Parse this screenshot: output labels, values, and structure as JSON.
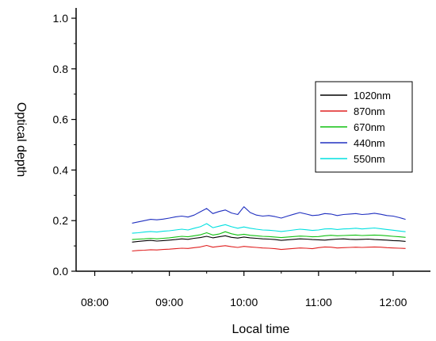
{
  "chart_data": {
    "type": "line",
    "xlabel": "Local time",
    "ylabel": "Optical depth",
    "xlim": [
      "07:45",
      "12:30"
    ],
    "ylim": [
      0.0,
      1.0
    ],
    "x_ticks": [
      "08:00",
      "09:00",
      "10:00",
      "11:00",
      "12:00"
    ],
    "y_ticks": [
      "0.0",
      "0.2",
      "0.4",
      "0.6",
      "0.8",
      "1.0"
    ],
    "x": [
      "08:30",
      "08:35",
      "08:40",
      "08:45",
      "08:50",
      "08:55",
      "09:00",
      "09:05",
      "09:10",
      "09:15",
      "09:20",
      "09:25",
      "09:30",
      "09:35",
      "09:40",
      "09:45",
      "09:50",
      "09:55",
      "10:00",
      "10:05",
      "10:10",
      "10:15",
      "10:20",
      "10:25",
      "10:30",
      "10:35",
      "10:40",
      "10:45",
      "10:50",
      "10:55",
      "11:00",
      "11:05",
      "11:10",
      "11:15",
      "11:20",
      "11:25",
      "11:30",
      "11:35",
      "11:40",
      "11:45",
      "11:50",
      "11:55",
      "12:00",
      "12:05",
      "12:10"
    ],
    "grid": false,
    "legend_position": "right",
    "series": [
      {
        "name": "1020nm",
        "color": "#000000",
        "values": [
          0.115,
          0.118,
          0.12,
          0.122,
          0.119,
          0.121,
          0.123,
          0.125,
          0.128,
          0.126,
          0.13,
          0.133,
          0.138,
          0.132,
          0.136,
          0.14,
          0.134,
          0.131,
          0.135,
          0.132,
          0.13,
          0.128,
          0.127,
          0.125,
          0.122,
          0.124,
          0.126,
          0.128,
          0.127,
          0.125,
          0.124,
          0.123,
          0.125,
          0.127,
          0.128,
          0.126,
          0.125,
          0.126,
          0.127,
          0.125,
          0.124,
          0.123,
          0.121,
          0.12,
          0.118
        ]
      },
      {
        "name": "870nm",
        "color": "#e02020",
        "values": [
          0.08,
          0.082,
          0.083,
          0.085,
          0.084,
          0.086,
          0.087,
          0.089,
          0.091,
          0.09,
          0.093,
          0.096,
          0.102,
          0.095,
          0.098,
          0.101,
          0.097,
          0.094,
          0.098,
          0.096,
          0.094,
          0.092,
          0.091,
          0.089,
          0.086,
          0.088,
          0.09,
          0.092,
          0.091,
          0.089,
          0.093,
          0.096,
          0.095,
          0.092,
          0.093,
          0.094,
          0.095,
          0.094,
          0.095,
          0.096,
          0.095,
          0.093,
          0.092,
          0.091,
          0.09
        ]
      },
      {
        "name": "670nm",
        "color": "#10c010",
        "values": [
          0.125,
          0.127,
          0.128,
          0.13,
          0.128,
          0.13,
          0.132,
          0.135,
          0.138,
          0.136,
          0.14,
          0.144,
          0.152,
          0.143,
          0.147,
          0.156,
          0.148,
          0.143,
          0.146,
          0.142,
          0.14,
          0.138,
          0.137,
          0.135,
          0.133,
          0.135,
          0.137,
          0.139,
          0.138,
          0.136,
          0.137,
          0.14,
          0.142,
          0.14,
          0.141,
          0.142,
          0.143,
          0.141,
          0.142,
          0.143,
          0.142,
          0.14,
          0.138,
          0.136,
          0.134
        ]
      },
      {
        "name": "440nm",
        "color": "#2030c0",
        "values": [
          0.19,
          0.195,
          0.2,
          0.205,
          0.203,
          0.206,
          0.21,
          0.215,
          0.218,
          0.214,
          0.222,
          0.235,
          0.248,
          0.228,
          0.236,
          0.242,
          0.23,
          0.224,
          0.255,
          0.232,
          0.222,
          0.218,
          0.22,
          0.216,
          0.21,
          0.218,
          0.225,
          0.232,
          0.226,
          0.22,
          0.222,
          0.228,
          0.226,
          0.22,
          0.224,
          0.226,
          0.228,
          0.224,
          0.226,
          0.229,
          0.225,
          0.22,
          0.218,
          0.212,
          0.205
        ]
      },
      {
        "name": "550nm",
        "color": "#00e0e0",
        "values": [
          0.15,
          0.152,
          0.155,
          0.157,
          0.155,
          0.158,
          0.16,
          0.163,
          0.166,
          0.163,
          0.17,
          0.176,
          0.188,
          0.172,
          0.178,
          0.184,
          0.176,
          0.17,
          0.175,
          0.17,
          0.166,
          0.163,
          0.162,
          0.16,
          0.157,
          0.16,
          0.163,
          0.166,
          0.164,
          0.161,
          0.163,
          0.167,
          0.168,
          0.165,
          0.167,
          0.168,
          0.17,
          0.167,
          0.169,
          0.171,
          0.168,
          0.165,
          0.162,
          0.159,
          0.156
        ]
      }
    ]
  }
}
